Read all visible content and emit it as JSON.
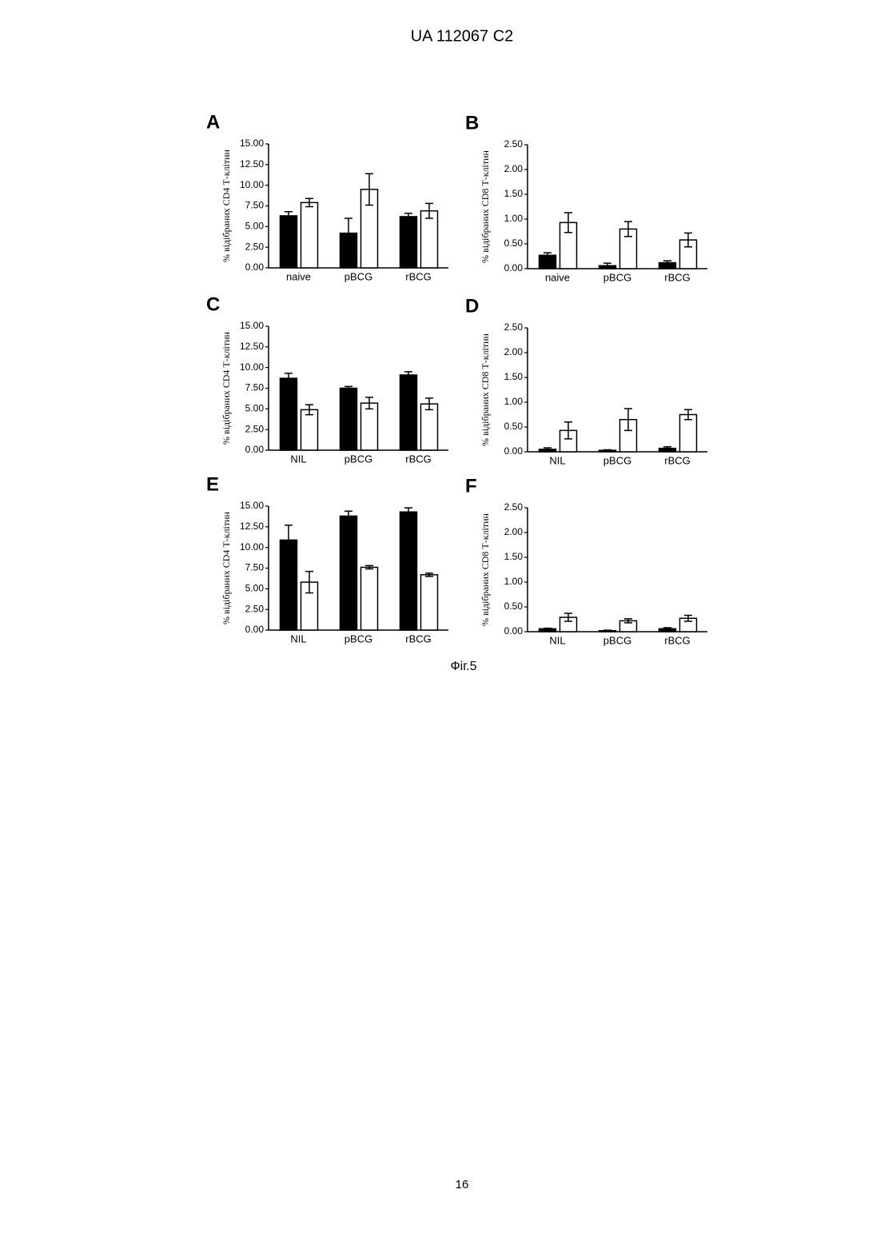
{
  "header": "UA   112067   C2",
  "caption": "Фіг.5",
  "page_number": "16",
  "chart_data": [
    {
      "type": "bar",
      "panel": "A",
      "ylabel": "% відібраних CD4 Т-клітин",
      "categories": [
        "naive",
        "pBCG",
        "rBCG"
      ],
      "series": [
        {
          "color": "#000000",
          "values": [
            6.3,
            4.2,
            6.2
          ],
          "errors": [
            0.5,
            1.8,
            0.4
          ]
        },
        {
          "color": "#ffffff",
          "values": [
            7.9,
            9.5,
            6.9
          ],
          "errors": [
            0.5,
            1.9,
            0.9
          ]
        }
      ],
      "ylim": [
        0,
        15
      ],
      "yticks": [
        {
          "value": 0,
          "label": "0.00"
        },
        {
          "value": 2.5,
          "label": "2.50"
        },
        {
          "value": 5,
          "label": "5.00"
        },
        {
          "value": 7.5,
          "label": "7.50"
        },
        {
          "value": 10,
          "label": "10.00"
        },
        {
          "value": 12.5,
          "label": "12.50"
        },
        {
          "value": 15,
          "label": "15.00"
        }
      ]
    },
    {
      "type": "bar",
      "panel": "B",
      "ylabel": "% відібраних CD8 Т-клітин",
      "categories": [
        "naive",
        "pBCG",
        "rBCG"
      ],
      "series": [
        {
          "color": "#000000",
          "values": [
            0.27,
            0.06,
            0.12
          ],
          "errors": [
            0.05,
            0.05,
            0.04
          ]
        },
        {
          "color": "#ffffff",
          "values": [
            0.93,
            0.8,
            0.58
          ],
          "errors": [
            0.2,
            0.15,
            0.14
          ]
        }
      ],
      "ylim": [
        0,
        2.5
      ],
      "yticks": [
        {
          "value": 0,
          "label": "0.00"
        },
        {
          "value": 0.5,
          "label": "0.50"
        },
        {
          "value": 1,
          "label": "1.00"
        },
        {
          "value": 1.5,
          "label": "1.50"
        },
        {
          "value": 2,
          "label": "2.00"
        },
        {
          "value": 2.5,
          "label": "2.50"
        }
      ]
    },
    {
      "type": "bar",
      "panel": "C",
      "ylabel": "% відібраних CD4 Т-клітин",
      "categories": [
        "NIL",
        "pBCG",
        "rBCG"
      ],
      "series": [
        {
          "color": "#000000",
          "values": [
            8.7,
            7.5,
            9.1
          ],
          "errors": [
            0.6,
            0.2,
            0.4
          ]
        },
        {
          "color": "#ffffff",
          "values": [
            4.9,
            5.7,
            5.6
          ],
          "errors": [
            0.6,
            0.7,
            0.7
          ]
        }
      ],
      "ylim": [
        0,
        15
      ],
      "yticks": [
        {
          "value": 0,
          "label": "0.00"
        },
        {
          "value": 2.5,
          "label": "2.50"
        },
        {
          "value": 5,
          "label": "5.00"
        },
        {
          "value": 7.5,
          "label": "7.50"
        },
        {
          "value": 10,
          "label": "10.00"
        },
        {
          "value": 12.5,
          "label": "12.50"
        },
        {
          "value": 15,
          "label": "15.00"
        }
      ]
    },
    {
      "type": "bar",
      "panel": "D",
      "ylabel": "% відібраних CD8 Т-клітин",
      "categories": [
        "NIL",
        "pBCG",
        "rBCG"
      ],
      "series": [
        {
          "color": "#000000",
          "values": [
            0.05,
            0.03,
            0.07
          ],
          "errors": [
            0.03,
            0.01,
            0.03
          ]
        },
        {
          "color": "#ffffff",
          "values": [
            0.43,
            0.65,
            0.75
          ],
          "errors": [
            0.17,
            0.22,
            0.1
          ]
        }
      ],
      "ylim": [
        0,
        2.5
      ],
      "yticks": [
        {
          "value": 0,
          "label": "0.00"
        },
        {
          "value": 0.5,
          "label": "0.50"
        },
        {
          "value": 1,
          "label": "1.00"
        },
        {
          "value": 1.5,
          "label": "1.50"
        },
        {
          "value": 2,
          "label": "2.00"
        },
        {
          "value": 2.5,
          "label": "2.50"
        }
      ]
    },
    {
      "type": "bar",
      "panel": "E",
      "ylabel": "% відібраних CD4 Т-клітин",
      "categories": [
        "NIL",
        "pBCG",
        "rBCG"
      ],
      "series": [
        {
          "color": "#000000",
          "values": [
            10.9,
            13.8,
            14.3
          ],
          "errors": [
            1.8,
            0.6,
            0.5
          ]
        },
        {
          "color": "#ffffff",
          "values": [
            5.8,
            7.6,
            6.7
          ],
          "errors": [
            1.3,
            0.2,
            0.2
          ]
        }
      ],
      "ylim": [
        0,
        15
      ],
      "yticks": [
        {
          "value": 0,
          "label": "0.00"
        },
        {
          "value": 2.5,
          "label": "2.50"
        },
        {
          "value": 5,
          "label": "5.00"
        },
        {
          "value": 7.5,
          "label": "7.50"
        },
        {
          "value": 10,
          "label": "10.00"
        },
        {
          "value": 12.5,
          "label": "12.50"
        },
        {
          "value": 15,
          "label": "15.00"
        }
      ]
    },
    {
      "type": "bar",
      "panel": "F",
      "ylabel": "% відібраних CD8 Т-клітин",
      "categories": [
        "NIL",
        "pBCG",
        "rBCG"
      ],
      "series": [
        {
          "color": "#000000",
          "values": [
            0.06,
            0.02,
            0.06
          ],
          "errors": [
            0.01,
            0.01,
            0.02
          ]
        },
        {
          "color": "#ffffff",
          "values": [
            0.29,
            0.22,
            0.27
          ],
          "errors": [
            0.08,
            0.04,
            0.06
          ]
        }
      ],
      "ylim": [
        0,
        2.5
      ],
      "yticks": [
        {
          "value": 0,
          "label": "0.00"
        },
        {
          "value": 0.5,
          "label": "0.50"
        },
        {
          "value": 1,
          "label": "1.00"
        },
        {
          "value": 1.5,
          "label": "1.50"
        },
        {
          "value": 2,
          "label": "2.00"
        },
        {
          "value": 2.5,
          "label": "2.50"
        }
      ]
    }
  ]
}
